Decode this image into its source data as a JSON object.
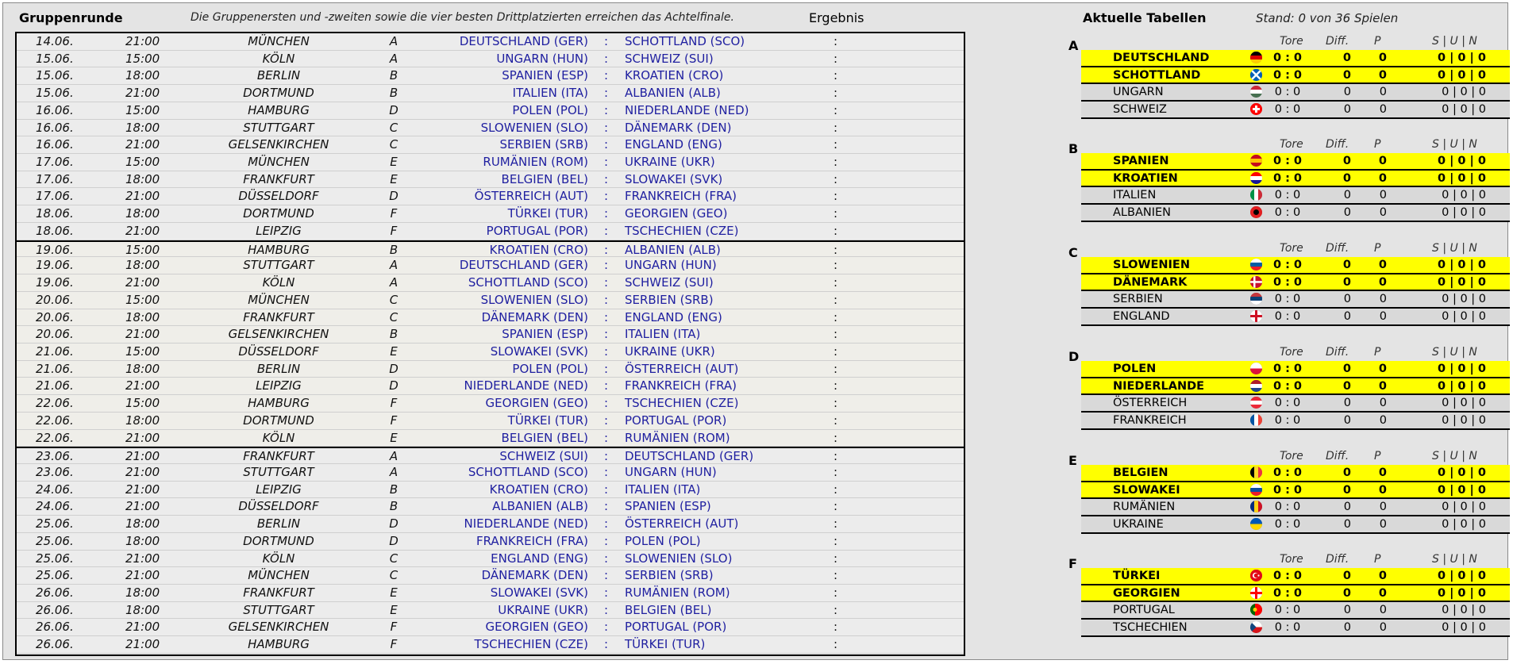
{
  "header": {
    "title": "Gruppenrunde",
    "subtitle": "Die Gruppenersten und -zweiten sowie die vier besten Drittplatzierten erreichen das Achtelfinale.",
    "result_label": "Ergebnis",
    "tables_title": "Aktuelle Tabellen",
    "stand": "Stand: 0 von 36 Spielen"
  },
  "matches": [
    {
      "date": "14.06.",
      "time": "21:00",
      "city": "MÜNCHEN",
      "group": "A",
      "home": "DEUTSCHLAND (GER)",
      "away": "SCHOTTLAND (SCO)",
      "result": ":",
      "md": 1
    },
    {
      "date": "15.06.",
      "time": "15:00",
      "city": "KÖLN",
      "group": "A",
      "home": "UNGARN (HUN)",
      "away": "SCHWEIZ (SUI)",
      "result": ":",
      "md": 1
    },
    {
      "date": "15.06.",
      "time": "18:00",
      "city": "BERLIN",
      "group": "B",
      "home": "SPANIEN (ESP)",
      "away": "KROATIEN (CRO)",
      "result": ":",
      "md": 1
    },
    {
      "date": "15.06.",
      "time": "21:00",
      "city": "DORTMUND",
      "group": "B",
      "home": "ITALIEN (ITA)",
      "away": "ALBANIEN (ALB)",
      "result": ":",
      "md": 1
    },
    {
      "date": "16.06.",
      "time": "15:00",
      "city": "HAMBURG",
      "group": "D",
      "home": "POLEN (POL)",
      "away": "NIEDERLANDE (NED)",
      "result": ":",
      "md": 1
    },
    {
      "date": "16.06.",
      "time": "18:00",
      "city": "STUTTGART",
      "group": "C",
      "home": "SLOWENIEN (SLO)",
      "away": "DÄNEMARK (DEN)",
      "result": ":",
      "md": 1
    },
    {
      "date": "16.06.",
      "time": "21:00",
      "city": "GELSENKIRCHEN",
      "group": "C",
      "home": "SERBIEN (SRB)",
      "away": "ENGLAND (ENG)",
      "result": ":",
      "md": 1
    },
    {
      "date": "17.06.",
      "time": "15:00",
      "city": "MÜNCHEN",
      "group": "E",
      "home": "RUMÄNIEN (ROM)",
      "away": "UKRAINE (UKR)",
      "result": ":",
      "md": 1
    },
    {
      "date": "17.06.",
      "time": "18:00",
      "city": "FRANKFURT",
      "group": "E",
      "home": "BELGIEN (BEL)",
      "away": "SLOWAKEI (SVK)",
      "result": ":",
      "md": 1
    },
    {
      "date": "17.06.",
      "time": "21:00",
      "city": "DÜSSELDORF",
      "group": "D",
      "home": "ÖSTERREICH (AUT)",
      "away": "FRANKREICH (FRA)",
      "result": ":",
      "md": 1
    },
    {
      "date": "18.06.",
      "time": "18:00",
      "city": "DORTMUND",
      "group": "F",
      "home": "TÜRKEI (TUR)",
      "away": "GEORGIEN (GEO)",
      "result": ":",
      "md": 1
    },
    {
      "date": "18.06.",
      "time": "21:00",
      "city": "LEIPZIG",
      "group": "F",
      "home": "PORTUGAL (POR)",
      "away": "TSCHECHIEN (CZE)",
      "result": ":",
      "md": 1
    },
    {
      "date": "19.06.",
      "time": "15:00",
      "city": "HAMBURG",
      "group": "B",
      "home": "KROATIEN (CRO)",
      "away": "ALBANIEN (ALB)",
      "result": ":",
      "md": 2
    },
    {
      "date": "19.06.",
      "time": "18:00",
      "city": "STUTTGART",
      "group": "A",
      "home": "DEUTSCHLAND (GER)",
      "away": "UNGARN (HUN)",
      "result": ":",
      "md": 2
    },
    {
      "date": "19.06.",
      "time": "21:00",
      "city": "KÖLN",
      "group": "A",
      "home": "SCHOTTLAND (SCO)",
      "away": "SCHWEIZ (SUI)",
      "result": ":",
      "md": 2
    },
    {
      "date": "20.06.",
      "time": "15:00",
      "city": "MÜNCHEN",
      "group": "C",
      "home": "SLOWENIEN (SLO)",
      "away": "SERBIEN (SRB)",
      "result": ":",
      "md": 2
    },
    {
      "date": "20.06.",
      "time": "18:00",
      "city": "FRANKFURT",
      "group": "C",
      "home": "DÄNEMARK (DEN)",
      "away": "ENGLAND (ENG)",
      "result": ":",
      "md": 2
    },
    {
      "date": "20.06.",
      "time": "21:00",
      "city": "GELSENKIRCHEN",
      "group": "B",
      "home": "SPANIEN (ESP)",
      "away": "ITALIEN (ITA)",
      "result": ":",
      "md": 2
    },
    {
      "date": "21.06.",
      "time": "15:00",
      "city": "DÜSSELDORF",
      "group": "E",
      "home": "SLOWAKEI (SVK)",
      "away": "UKRAINE (UKR)",
      "result": ":",
      "md": 2
    },
    {
      "date": "21.06.",
      "time": "18:00",
      "city": "BERLIN",
      "group": "D",
      "home": "POLEN (POL)",
      "away": "ÖSTERREICH (AUT)",
      "result": ":",
      "md": 2
    },
    {
      "date": "21.06.",
      "time": "21:00",
      "city": "LEIPZIG",
      "group": "D",
      "home": "NIEDERLANDE (NED)",
      "away": "FRANKREICH (FRA)",
      "result": ":",
      "md": 2
    },
    {
      "date": "22.06.",
      "time": "15:00",
      "city": "HAMBURG",
      "group": "F",
      "home": "GEORGIEN (GEO)",
      "away": "TSCHECHIEN (CZE)",
      "result": ":",
      "md": 2
    },
    {
      "date": "22.06.",
      "time": "18:00",
      "city": "DORTMUND",
      "group": "F",
      "home": "TÜRKEI (TUR)",
      "away": "PORTUGAL (POR)",
      "result": ":",
      "md": 2
    },
    {
      "date": "22.06.",
      "time": "21:00",
      "city": "KÖLN",
      "group": "E",
      "home": "BELGIEN (BEL)",
      "away": "RUMÄNIEN (ROM)",
      "result": ":",
      "md": 2
    },
    {
      "date": "23.06.",
      "time": "21:00",
      "city": "FRANKFURT",
      "group": "A",
      "home": "SCHWEIZ (SUI)",
      "away": "DEUTSCHLAND (GER)",
      "result": ":",
      "md": 3
    },
    {
      "date": "23.06.",
      "time": "21:00",
      "city": "STUTTGART",
      "group": "A",
      "home": "SCHOTTLAND (SCO)",
      "away": "UNGARN (HUN)",
      "result": ":",
      "md": 3
    },
    {
      "date": "24.06.",
      "time": "21:00",
      "city": "LEIPZIG",
      "group": "B",
      "home": "KROATIEN (CRO)",
      "away": "ITALIEN (ITA)",
      "result": ":",
      "md": 3
    },
    {
      "date": "24.06.",
      "time": "21:00",
      "city": "DÜSSELDORF",
      "group": "B",
      "home": "ALBANIEN (ALB)",
      "away": "SPANIEN (ESP)",
      "result": ":",
      "md": 3
    },
    {
      "date": "25.06.",
      "time": "18:00",
      "city": "BERLIN",
      "group": "D",
      "home": "NIEDERLANDE (NED)",
      "away": "ÖSTERREICH (AUT)",
      "result": ":",
      "md": 3
    },
    {
      "date": "25.06.",
      "time": "18:00",
      "city": "DORTMUND",
      "group": "D",
      "home": "FRANKREICH (FRA)",
      "away": "POLEN (POL)",
      "result": ":",
      "md": 3
    },
    {
      "date": "25.06.",
      "time": "21:00",
      "city": "KÖLN",
      "group": "C",
      "home": "ENGLAND (ENG)",
      "away": "SLOWENIEN (SLO)",
      "result": ":",
      "md": 3
    },
    {
      "date": "25.06.",
      "time": "21:00",
      "city": "MÜNCHEN",
      "group": "C",
      "home": "DÄNEMARK (DEN)",
      "away": "SERBIEN (SRB)",
      "result": ":",
      "md": 3
    },
    {
      "date": "26.06.",
      "time": "18:00",
      "city": "FRANKFURT",
      "group": "E",
      "home": "SLOWAKEI (SVK)",
      "away": "RUMÄNIEN (ROM)",
      "result": ":",
      "md": 3
    },
    {
      "date": "26.06.",
      "time": "18:00",
      "city": "STUTTGART",
      "group": "E",
      "home": "UKRAINE (UKR)",
      "away": "BELGIEN (BEL)",
      "result": ":",
      "md": 3
    },
    {
      "date": "26.06.",
      "time": "21:00",
      "city": "GELSENKIRCHEN",
      "group": "F",
      "home": "GEORGIEN (GEO)",
      "away": "PORTUGAL (POR)",
      "result": ":",
      "md": 3
    },
    {
      "date": "26.06.",
      "time": "21:00",
      "city": "HAMBURG",
      "group": "F",
      "home": "TSCHECHIEN (CZE)",
      "away": "TÜRKEI (TUR)",
      "result": ":",
      "md": 3
    }
  ],
  "table_headers": {
    "tore": "Tore",
    "diff": "Diff.",
    "p": "P",
    "sun": "S | U | N"
  },
  "groups": [
    {
      "label": "A",
      "teams": [
        {
          "name": "DEUTSCHLAND",
          "tore": "0 : 0",
          "diff": "0",
          "p": "0",
          "sun": "0 | 0 | 0",
          "flag": "flag-germany-icon",
          "colors": [
            "#000000",
            "#dd0000",
            "#ffce00"
          ],
          "orient": "h"
        },
        {
          "name": "SCHOTTLAND",
          "tore": "0 : 0",
          "diff": "0",
          "p": "0",
          "sun": "0 | 0 | 0",
          "flag": "flag-scotland-icon",
          "colors": [
            "#005eb8",
            "#ffffff"
          ],
          "orient": "x"
        },
        {
          "name": "UNGARN",
          "tore": "0 : 0",
          "diff": "0",
          "p": "0",
          "sun": "0 | 0 | 0",
          "flag": "flag-hungary-icon",
          "colors": [
            "#ce2939",
            "#ffffff",
            "#477050"
          ],
          "orient": "h"
        },
        {
          "name": "SCHWEIZ",
          "tore": "0 : 0",
          "diff": "0",
          "p": "0",
          "sun": "0 | 0 | 0",
          "flag": "flag-switzerland-icon",
          "colors": [
            "#ff0000",
            "#ffffff"
          ],
          "orient": "c"
        }
      ]
    },
    {
      "label": "B",
      "teams": [
        {
          "name": "SPANIEN",
          "tore": "0 : 0",
          "diff": "0",
          "p": "0",
          "sun": "0 | 0 | 0",
          "flag": "flag-spain-icon",
          "colors": [
            "#c60b1e",
            "#ffc400",
            "#c60b1e"
          ],
          "orient": "h"
        },
        {
          "name": "KROATIEN",
          "tore": "0 : 0",
          "diff": "0",
          "p": "0",
          "sun": "0 | 0 | 0",
          "flag": "flag-croatia-icon",
          "colors": [
            "#ff0000",
            "#ffffff",
            "#171796"
          ],
          "orient": "h"
        },
        {
          "name": "ITALIEN",
          "tore": "0 : 0",
          "diff": "0",
          "p": "0",
          "sun": "0 | 0 | 0",
          "flag": "flag-italy-icon",
          "colors": [
            "#009246",
            "#ffffff",
            "#ce2b37"
          ],
          "orient": "v"
        },
        {
          "name": "ALBANIEN",
          "tore": "0 : 0",
          "diff": "0",
          "p": "0",
          "sun": "0 | 0 | 0",
          "flag": "flag-albania-icon",
          "colors": [
            "#e41e20",
            "#000000"
          ],
          "orient": "s"
        }
      ]
    },
    {
      "label": "C",
      "teams": [
        {
          "name": "SLOWENIEN",
          "tore": "0 : 0",
          "diff": "0",
          "p": "0",
          "sun": "0 | 0 | 0",
          "flag": "flag-slovenia-icon",
          "colors": [
            "#ffffff",
            "#005da4",
            "#ed1c24"
          ],
          "orient": "h"
        },
        {
          "name": "DÄNEMARK",
          "tore": "0 : 0",
          "diff": "0",
          "p": "0",
          "sun": "0 | 0 | 0",
          "flag": "flag-denmark-icon",
          "colors": [
            "#c8102e",
            "#ffffff"
          ],
          "orient": "n"
        },
        {
          "name": "SERBIEN",
          "tore": "0 : 0",
          "diff": "0",
          "p": "0",
          "sun": "0 | 0 | 0",
          "flag": "flag-serbia-icon",
          "colors": [
            "#c6363c",
            "#0c4076",
            "#ffffff"
          ],
          "orient": "h"
        },
        {
          "name": "ENGLAND",
          "tore": "0 : 0",
          "diff": "0",
          "p": "0",
          "sun": "0 | 0 | 0",
          "flag": "flag-england-icon",
          "colors": [
            "#ffffff",
            "#ce1124"
          ],
          "orient": "p"
        }
      ]
    },
    {
      "label": "D",
      "teams": [
        {
          "name": "POLEN",
          "tore": "0 : 0",
          "diff": "0",
          "p": "0",
          "sun": "0 | 0 | 0",
          "flag": "flag-poland-icon",
          "colors": [
            "#ffffff",
            "#dc143c"
          ],
          "orient": "h"
        },
        {
          "name": "NIEDERLANDE",
          "tore": "0 : 0",
          "diff": "0",
          "p": "0",
          "sun": "0 | 0 | 0",
          "flag": "flag-netherlands-icon",
          "colors": [
            "#ae1c28",
            "#ffffff",
            "#21468b"
          ],
          "orient": "h"
        },
        {
          "name": "ÖSTERREICH",
          "tore": "0 : 0",
          "diff": "0",
          "p": "0",
          "sun": "0 | 0 | 0",
          "flag": "flag-austria-icon",
          "colors": [
            "#ed2939",
            "#ffffff",
            "#ed2939"
          ],
          "orient": "h"
        },
        {
          "name": "FRANKREICH",
          "tore": "0 : 0",
          "diff": "0",
          "p": "0",
          "sun": "0 | 0 | 0",
          "flag": "flag-france-icon",
          "colors": [
            "#0055a4",
            "#ffffff",
            "#ef4135"
          ],
          "orient": "v"
        }
      ]
    },
    {
      "label": "E",
      "teams": [
        {
          "name": "BELGIEN",
          "tore": "0 : 0",
          "diff": "0",
          "p": "0",
          "sun": "0 | 0 | 0",
          "flag": "flag-belgium-icon",
          "colors": [
            "#000000",
            "#fdda24",
            "#ef3340"
          ],
          "orient": "v"
        },
        {
          "name": "SLOWAKEI",
          "tore": "0 : 0",
          "diff": "0",
          "p": "0",
          "sun": "0 | 0 | 0",
          "flag": "flag-slovakia-icon",
          "colors": [
            "#ffffff",
            "#0b4ea2",
            "#ee1c25"
          ],
          "orient": "h"
        },
        {
          "name": "RUMÄNIEN",
          "tore": "0 : 0",
          "diff": "0",
          "p": "0",
          "sun": "0 | 0 | 0",
          "flag": "flag-romania-icon",
          "colors": [
            "#002b7f",
            "#fcd116",
            "#ce1126"
          ],
          "orient": "v"
        },
        {
          "name": "UKRAINE",
          "tore": "0 : 0",
          "diff": "0",
          "p": "0",
          "sun": "0 | 0 | 0",
          "flag": "flag-ukraine-icon",
          "colors": [
            "#0057b7",
            "#ffd700"
          ],
          "orient": "h"
        }
      ]
    },
    {
      "label": "F",
      "teams": [
        {
          "name": "TÜRKEI",
          "tore": "0 : 0",
          "diff": "0",
          "p": "0",
          "sun": "0 | 0 | 0",
          "flag": "flag-turkey-icon",
          "colors": [
            "#e30a17",
            "#ffffff"
          ],
          "orient": "t"
        },
        {
          "name": "GEORGIEN",
          "tore": "0 : 0",
          "diff": "0",
          "p": "0",
          "sun": "0 | 0 | 0",
          "flag": "flag-georgia-icon",
          "colors": [
            "#ffffff",
            "#ff0000"
          ],
          "orient": "p"
        },
        {
          "name": "PORTUGAL",
          "tore": "0 : 0",
          "diff": "0",
          "p": "0",
          "sun": "0 | 0 | 0",
          "flag": "flag-portugal-icon",
          "colors": [
            "#006600",
            "#ff0000"
          ],
          "orient": "v2"
        },
        {
          "name": "TSCHECHIEN",
          "tore": "0 : 0",
          "diff": "0",
          "p": "0",
          "sun": "0 | 0 | 0",
          "flag": "flag-czech-icon",
          "colors": [
            "#ffffff",
            "#d7141a",
            "#11457e"
          ],
          "orient": "cz"
        }
      ]
    }
  ]
}
